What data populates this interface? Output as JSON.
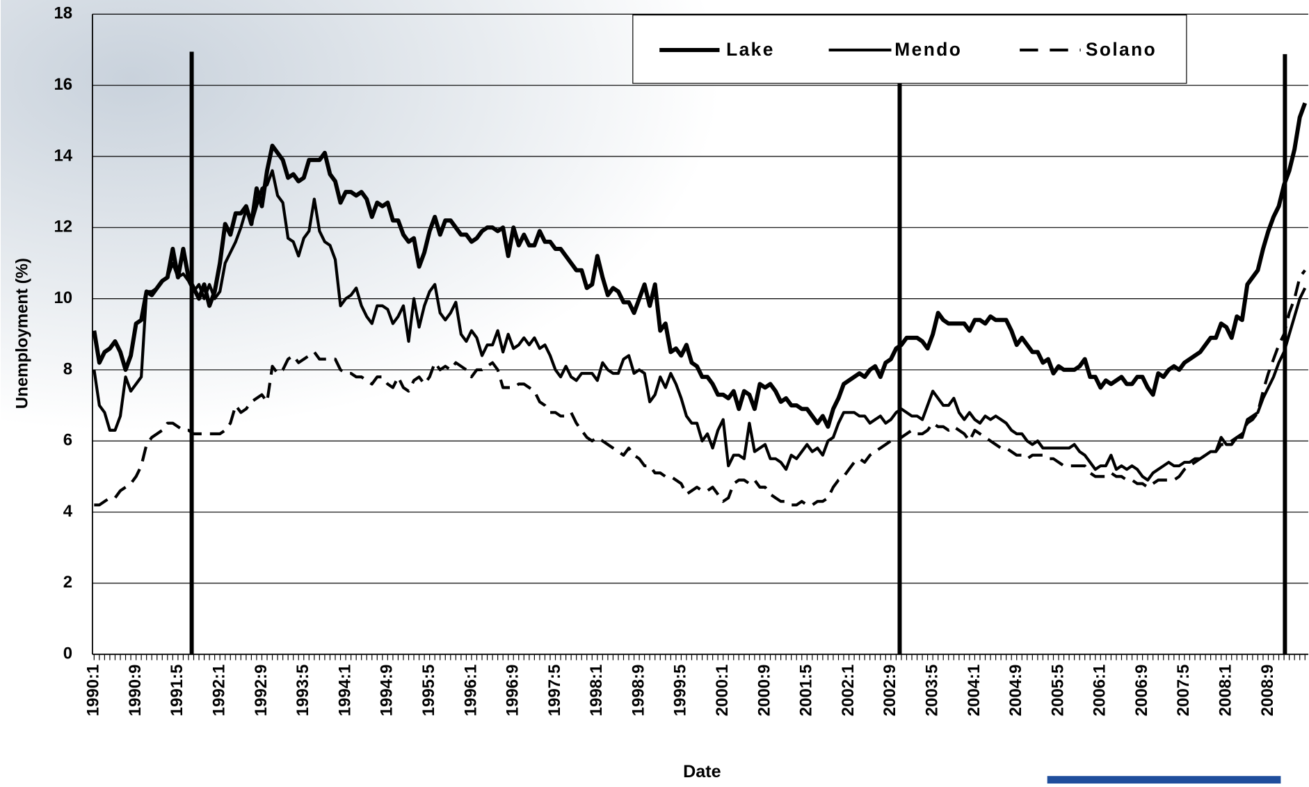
{
  "chart_data": {
    "type": "line",
    "ylabel": "Unemployment (%)",
    "xlabel": "Date",
    "ylim": [
      0,
      18
    ],
    "yticks": [
      0,
      2,
      4,
      6,
      8,
      10,
      12,
      14,
      16,
      18
    ],
    "grid": true,
    "legend": "top-right",
    "categories": [
      "1990:1",
      null,
      null,
      null,
      null,
      null,
      null,
      null,
      "1990:9",
      null,
      null,
      null,
      null,
      null,
      null,
      null,
      "1991:5",
      null,
      null,
      null,
      null,
      null,
      null,
      null,
      "1992:1",
      null,
      null,
      null,
      null,
      null,
      null,
      null,
      "1992:9",
      null,
      null,
      null,
      null,
      null,
      null,
      null,
      "1993:5",
      null,
      null,
      null,
      null,
      null,
      null,
      null,
      "1994:1",
      null,
      null,
      null,
      null,
      null,
      null,
      null,
      "1994:9",
      null,
      null,
      null,
      null,
      null,
      null,
      null,
      "1995:5",
      null,
      null,
      null,
      null,
      null,
      null,
      null,
      "1996:1",
      null,
      null,
      null,
      null,
      null,
      null,
      null,
      "1996:9",
      null,
      null,
      null,
      null,
      null,
      null,
      null,
      "1997:5",
      null,
      null,
      null,
      null,
      null,
      null,
      null,
      "1998:1",
      null,
      null,
      null,
      null,
      null,
      null,
      null,
      "1998:9",
      null,
      null,
      null,
      null,
      null,
      null,
      null,
      "1999:5",
      null,
      null,
      null,
      null,
      null,
      null,
      null,
      "2000:1",
      null,
      null,
      null,
      null,
      null,
      null,
      null,
      "2000:9",
      null,
      null,
      null,
      null,
      null,
      null,
      null,
      "2001:5",
      null,
      null,
      null,
      null,
      null,
      null,
      null,
      "2002:1",
      null,
      null,
      null,
      null,
      null,
      null,
      null,
      "2002:9",
      null,
      null,
      null,
      null,
      null,
      null,
      null,
      "2003:5",
      null,
      null,
      null,
      null,
      null,
      null,
      null,
      "2004:1",
      null,
      null,
      null,
      null,
      null,
      null,
      null,
      "2004:9",
      null,
      null,
      null,
      null,
      null,
      null,
      null,
      "2005:5",
      null,
      null,
      null,
      null,
      null,
      null,
      null,
      "2006:1",
      null,
      null,
      null,
      null,
      null,
      null,
      null,
      "2006:9",
      null,
      null,
      null,
      null,
      null,
      null,
      null,
      "2007:5",
      null,
      null,
      null,
      null,
      null,
      null,
      null,
      "2008:1",
      null,
      null,
      null,
      null,
      null,
      null,
      null,
      "2008:9",
      null,
      null,
      null,
      null,
      null,
      null,
      null
    ],
    "series": [
      {
        "name": "Lake",
        "color": "#000000",
        "style": "solid",
        "linewidth": 5,
        "values": [
          9.1,
          8.2,
          8.5,
          8.6,
          8.8,
          8.5,
          8.0,
          8.4,
          9.3,
          9.4,
          10.2,
          10.1,
          10.3,
          10.5,
          10.6,
          11.4,
          10.6,
          11.4,
          10.6,
          10.3,
          10.0,
          10.4,
          9.8,
          10.2,
          11.0,
          12.1,
          11.8,
          12.4,
          12.4,
          12.6,
          12.1,
          13.1,
          12.6,
          13.6,
          14.3,
          14.1,
          13.9,
          13.4,
          13.5,
          13.3,
          13.4,
          13.9,
          13.9,
          13.9,
          14.1,
          13.5,
          13.3,
          12.7,
          13.0,
          13.0,
          12.9,
          13.0,
          12.8,
          12.3,
          12.7,
          12.6,
          12.7,
          12.2,
          12.2,
          11.8,
          11.6,
          11.7,
          10.9,
          11.3,
          11.9,
          12.3,
          11.8,
          12.2,
          12.2,
          12.0,
          11.8,
          11.8,
          11.6,
          11.7,
          11.9,
          12.0,
          12.0,
          11.9,
          12.0,
          11.2,
          12.0,
          11.5,
          11.8,
          11.5,
          11.5,
          11.9,
          11.6,
          11.6,
          11.4,
          11.4,
          11.2,
          11.0,
          10.8,
          10.8,
          10.3,
          10.4,
          11.2,
          10.6,
          10.1,
          10.3,
          10.2,
          9.9,
          9.9,
          9.6,
          10.0,
          10.4,
          9.8,
          10.4,
          9.1,
          9.3,
          8.5,
          8.6,
          8.4,
          8.7,
          8.2,
          8.1,
          7.8,
          7.8,
          7.6,
          7.3,
          7.3,
          7.2,
          7.4,
          6.9,
          7.4,
          7.3,
          6.9,
          7.6,
          7.5,
          7.6,
          7.4,
          7.1,
          7.2,
          7.0,
          7.0,
          6.9,
          6.9,
          6.7,
          6.5,
          6.7,
          6.4,
          6.9,
          7.2,
          7.6,
          7.7,
          7.8,
          7.9,
          7.8,
          8.0,
          8.1,
          7.8,
          8.2,
          8.3,
          8.6,
          8.7,
          8.9,
          8.9,
          8.9,
          8.8,
          8.6,
          9.0,
          9.6,
          9.4,
          9.3,
          9.3,
          9.3,
          9.3,
          9.1,
          9.4,
          9.4,
          9.3,
          9.5,
          9.4,
          9.4,
          9.4,
          9.1,
          8.7,
          8.9,
          8.7,
          8.5,
          8.5,
          8.2,
          8.3,
          7.9,
          8.1,
          8.0,
          8.0,
          8.0,
          8.1,
          8.3,
          7.8,
          7.8,
          7.5,
          7.7,
          7.6,
          7.7,
          7.8,
          7.6,
          7.6,
          7.8,
          7.8,
          7.5,
          7.3,
          7.9,
          7.8,
          8.0,
          8.1,
          8.0,
          8.2,
          8.3,
          8.4,
          8.5,
          8.7,
          8.9,
          8.9,
          9.3,
          9.2,
          8.9,
          9.5,
          9.4,
          10.4,
          10.6,
          10.8,
          11.4,
          11.9,
          12.3,
          12.6,
          13.2,
          13.6,
          14.2,
          15.1,
          15.5
        ]
      },
      {
        "name": "Mendo",
        "color": "#000000",
        "style": "solid",
        "linewidth": 3.5,
        "values": [
          8.0,
          7.0,
          6.8,
          6.3,
          6.3,
          6.7,
          7.8,
          7.4,
          7.6,
          7.8,
          10.2,
          10.2,
          10.3,
          10.5,
          10.6,
          11.0,
          10.6,
          10.7,
          10.5,
          10.2,
          10.4,
          10.0,
          10.4,
          10.0,
          10.2,
          11.0,
          11.3,
          11.6,
          12.0,
          12.5,
          12.1,
          12.6,
          13.1,
          13.2,
          13.6,
          12.9,
          12.7,
          11.7,
          11.6,
          11.2,
          11.7,
          11.9,
          12.8,
          11.9,
          11.6,
          11.5,
          11.1,
          9.8,
          10.0,
          10.1,
          10.3,
          9.8,
          9.5,
          9.3,
          9.8,
          9.8,
          9.7,
          9.3,
          9.5,
          9.8,
          8.8,
          10.0,
          9.2,
          9.8,
          10.2,
          10.4,
          9.6,
          9.4,
          9.6,
          9.9,
          9.0,
          8.8,
          9.1,
          8.9,
          8.4,
          8.7,
          8.7,
          9.1,
          8.5,
          9.0,
          8.6,
          8.7,
          8.9,
          8.7,
          8.9,
          8.6,
          8.7,
          8.4,
          8.0,
          7.8,
          8.1,
          7.8,
          7.7,
          7.9,
          7.9,
          7.9,
          7.7,
          8.2,
          8.0,
          7.9,
          7.9,
          8.3,
          8.4,
          7.9,
          8.0,
          7.9,
          7.1,
          7.3,
          7.8,
          7.5,
          7.9,
          7.6,
          7.2,
          6.7,
          6.5,
          6.5,
          6.0,
          6.2,
          5.8,
          6.3,
          6.6,
          5.3,
          5.6,
          5.6,
          5.5,
          6.5,
          5.7,
          5.8,
          5.9,
          5.5,
          5.5,
          5.4,
          5.2,
          5.6,
          5.5,
          5.7,
          5.9,
          5.7,
          5.8,
          5.6,
          6.0,
          6.1,
          6.5,
          6.8,
          6.8,
          6.8,
          6.7,
          6.7,
          6.5,
          6.6,
          6.7,
          6.5,
          6.6,
          6.8,
          6.9,
          6.8,
          6.7,
          6.7,
          6.6,
          7.0,
          7.4,
          7.2,
          7.0,
          7.0,
          7.2,
          6.8,
          6.6,
          6.8,
          6.6,
          6.5,
          6.7,
          6.6,
          6.7,
          6.6,
          6.5,
          6.3,
          6.2,
          6.2,
          6.0,
          5.9,
          6.0,
          5.8,
          5.8,
          5.8,
          5.8,
          5.8,
          5.8,
          5.9,
          5.7,
          5.6,
          5.4,
          5.2,
          5.3,
          5.3,
          5.6,
          5.2,
          5.3,
          5.2,
          5.3,
          5.2,
          5.0,
          4.9,
          5.1,
          5.2,
          5.3,
          5.4,
          5.3,
          5.3,
          5.4,
          5.4,
          5.5,
          5.5,
          5.6,
          5.7,
          5.7,
          6.1,
          5.9,
          5.9,
          6.1,
          6.1,
          6.6,
          6.7,
          6.8,
          7.2,
          7.5,
          7.8,
          8.2,
          8.5,
          9.0,
          9.5,
          10.0,
          10.3
        ]
      },
      {
        "name": "Solano",
        "color": "#000000",
        "style": "dashed",
        "linewidth": 3.5,
        "values": [
          4.2,
          4.2,
          4.3,
          4.4,
          4.4,
          4.6,
          4.7,
          4.8,
          5.0,
          5.3,
          5.9,
          6.1,
          6.2,
          6.3,
          6.5,
          6.5,
          6.4,
          6.3,
          6.3,
          6.2,
          6.2,
          6.2,
          6.2,
          6.2,
          6.2,
          6.3,
          6.5,
          7.0,
          6.8,
          6.9,
          7.1,
          7.2,
          7.3,
          7.1,
          8.1,
          7.9,
          8.0,
          8.3,
          8.4,
          8.2,
          8.3,
          8.4,
          8.5,
          8.3,
          8.3,
          8.3,
          8.3,
          8.0,
          7.9,
          7.9,
          7.8,
          7.8,
          7.7,
          7.6,
          7.8,
          7.8,
          7.6,
          7.5,
          7.8,
          7.5,
          7.4,
          7.7,
          7.8,
          7.6,
          7.8,
          8.2,
          8.0,
          8.1,
          8.0,
          8.2,
          8.1,
          8.0,
          7.8,
          8.0,
          8.0,
          8.1,
          8.2,
          8.0,
          7.5,
          7.5,
          7.5,
          7.6,
          7.6,
          7.5,
          7.4,
          7.1,
          7.0,
          6.8,
          6.8,
          6.7,
          6.7,
          6.8,
          6.5,
          6.3,
          6.1,
          6.0,
          6.1,
          6.0,
          5.9,
          5.8,
          5.7,
          5.6,
          5.8,
          5.6,
          5.5,
          5.3,
          5.3,
          5.1,
          5.1,
          5.0,
          5.0,
          4.9,
          4.8,
          4.5,
          4.6,
          4.7,
          4.6,
          4.6,
          4.7,
          4.5,
          4.3,
          4.4,
          4.8,
          4.9,
          4.9,
          4.8,
          4.9,
          4.7,
          4.7,
          4.5,
          4.4,
          4.3,
          4.3,
          4.2,
          4.2,
          4.3,
          4.2,
          4.2,
          4.3,
          4.3,
          4.4,
          4.7,
          4.9,
          5.0,
          5.2,
          5.4,
          5.5,
          5.4,
          5.6,
          5.7,
          5.8,
          5.9,
          6.0,
          6.0,
          6.1,
          6.2,
          6.3,
          6.2,
          6.2,
          6.3,
          6.5,
          6.4,
          6.4,
          6.3,
          6.4,
          6.3,
          6.2,
          6.0,
          6.3,
          6.2,
          6.1,
          6.0,
          5.9,
          5.8,
          5.8,
          5.7,
          5.6,
          5.6,
          5.5,
          5.6,
          5.6,
          5.6,
          5.5,
          5.5,
          5.4,
          5.3,
          5.3,
          5.3,
          5.3,
          5.3,
          5.1,
          5.0,
          5.0,
          5.0,
          5.1,
          5.0,
          5.0,
          4.9,
          4.9,
          4.8,
          4.8,
          4.7,
          4.8,
          4.9,
          4.9,
          4.9,
          4.9,
          5.0,
          5.2,
          5.3,
          5.4,
          5.5,
          5.6,
          5.7,
          5.7,
          5.9,
          5.9,
          6.0,
          6.1,
          6.2,
          6.5,
          6.6,
          6.8,
          7.4,
          7.9,
          8.3,
          8.7,
          9.0,
          9.6,
          10.0,
          10.6,
          10.8
        ]
      }
    ]
  }
}
